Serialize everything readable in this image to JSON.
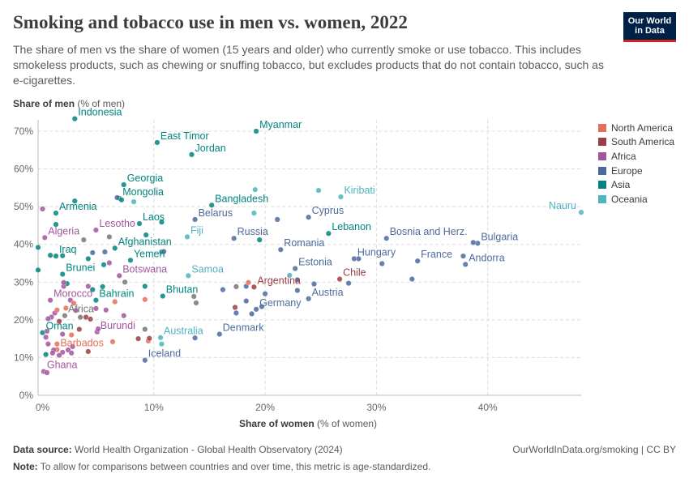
{
  "header": {
    "title": "Smoking and tobacco use in men vs. women, 2022",
    "subtitle": "The share of men vs the share of women (15 years and older) who currently smoke or use tobacco. This includes smokeless products, such as chewing or snuffing tobacco, but excludes products that do not contain tobacco, such as e-cigarettes.",
    "logo_text": "Our World in Data"
  },
  "footer": {
    "source_label": "Data source:",
    "source": "World Health Organization - Global Health Observatory (2024)",
    "link": "OurWorldInData.org/smoking | CC BY",
    "note_label": "Note:",
    "note": "To allow for comparisons between countries and over time, this metric is age-standardized."
  },
  "chart_data": {
    "type": "scatter",
    "title": "Smoking and tobacco use in men vs. women, 2022",
    "xlabel_bold": "Share of women",
    "xlabel_unit": "(% of women)",
    "ylabel_bold": "Share of men",
    "ylabel_unit": "(% of men)",
    "xlim": [
      -0.4,
      48.4
    ],
    "ylim": [
      0,
      73
    ],
    "xticks": [
      {
        "v": 0,
        "label": "0%"
      },
      {
        "v": 10,
        "label": "10%"
      },
      {
        "v": 20,
        "label": "20%"
      },
      {
        "v": 30,
        "label": "30%"
      },
      {
        "v": 40,
        "label": "40%"
      }
    ],
    "yticks": [
      {
        "v": 0,
        "label": "0%"
      },
      {
        "v": 10,
        "label": "10%"
      },
      {
        "v": 20,
        "label": "20%"
      },
      {
        "v": 30,
        "label": "30%"
      },
      {
        "v": 40,
        "label": "40%"
      },
      {
        "v": 50,
        "label": "50%"
      },
      {
        "v": 60,
        "label": "60%"
      },
      {
        "v": 70,
        "label": "70%"
      }
    ],
    "grid": true,
    "legend_position": "right",
    "legend": [
      {
        "name": "North America",
        "color": "#e56e5a"
      },
      {
        "name": "South America",
        "color": "#9a3e47"
      },
      {
        "name": "Africa",
        "color": "#a2559c"
      },
      {
        "name": "Europe",
        "color": "#4c6a9c"
      },
      {
        "name": "Asia",
        "color": "#00847e"
      },
      {
        "name": "Oceania",
        "color": "#4fb3c0"
      }
    ],
    "aggregate_color": "#777777",
    "points": [
      {
        "name": "Indonesia",
        "region": "Asia",
        "x": 2.9,
        "y": 73.3
      },
      {
        "name": "East Timor",
        "region": "Asia",
        "x": 10.3,
        "y": 67.0
      },
      {
        "name": "Myanmar",
        "region": "Asia",
        "x": 19.2,
        "y": 70.0
      },
      {
        "name": "Jordan",
        "region": "Asia",
        "x": 13.4,
        "y": 63.8
      },
      {
        "name": "Georgia",
        "region": "Asia",
        "x": 7.3,
        "y": 55.8
      },
      {
        "name": "Mongolia",
        "region": "Asia",
        "x": 6.9,
        "y": 52.2
      },
      {
        "name": "Armenia",
        "region": "Asia",
        "x": 1.2,
        "y": 48.3
      },
      {
        "name": "Bangladesh",
        "region": "Asia",
        "x": 15.2,
        "y": 50.4
      },
      {
        "name": "Laos",
        "region": "Asia",
        "x": 8.7,
        "y": 45.5
      },
      {
        "name": "Afghanistan",
        "region": "Asia",
        "x": 6.5,
        "y": 39.0
      },
      {
        "name": "Iraq",
        "region": "Asia",
        "x": 1.2,
        "y": 36.9
      },
      {
        "name": "Yemen",
        "region": "Asia",
        "x": 7.9,
        "y": 35.8
      },
      {
        "name": "Brunei",
        "region": "Asia",
        "x": 1.8,
        "y": 32.1
      },
      {
        "name": "Bahrain",
        "region": "Asia",
        "x": 4.8,
        "y": 25.2
      },
      {
        "name": "Oman",
        "region": "Asia",
        "x": 0.0,
        "y": 16.6
      },
      {
        "name": "Bhutan",
        "region": "Asia",
        "x": 10.8,
        "y": 26.3
      },
      {
        "name": "Lebanon",
        "region": "Asia",
        "x": 25.7,
        "y": 42.9
      },
      {
        "name": "Algeria",
        "region": "Africa",
        "x": 0.2,
        "y": 41.8
      },
      {
        "name": "Lesotho",
        "region": "Africa",
        "x": 4.8,
        "y": 43.8
      },
      {
        "name": "Botswana",
        "region": "Africa",
        "x": 6.9,
        "y": 31.7
      },
      {
        "name": "Morocco",
        "region": "Africa",
        "x": 0.7,
        "y": 25.2
      },
      {
        "name": "Burundi",
        "region": "Africa",
        "x": 4.9,
        "y": 16.8
      },
      {
        "name": "Ghana",
        "region": "Africa",
        "x": 0.1,
        "y": 6.3
      },
      {
        "name": "Africa",
        "region": "aggregate",
        "x": 2.0,
        "y": 21.1
      },
      {
        "name": "Barbados",
        "region": "North America",
        "x": 1.3,
        "y": 12.1
      },
      {
        "name": "Samoa",
        "region": "Oceania",
        "x": 13.1,
        "y": 31.7
      },
      {
        "name": "Fiji",
        "region": "Oceania",
        "x": 13.0,
        "y": 42.0
      },
      {
        "name": "Australia",
        "region": "Oceania",
        "x": 10.6,
        "y": 15.3
      },
      {
        "name": "Kiribati",
        "region": "Oceania",
        "x": 26.8,
        "y": 52.6
      },
      {
        "name": "Nauru",
        "region": "Oceania",
        "x": 48.4,
        "y": 48.5
      },
      {
        "name": "Iceland",
        "region": "Europe",
        "x": 9.2,
        "y": 9.3
      },
      {
        "name": "Denmark",
        "region": "Europe",
        "x": 15.9,
        "y": 16.2
      },
      {
        "name": "Germany",
        "region": "Europe",
        "x": 19.2,
        "y": 22.8
      },
      {
        "name": "Austria",
        "region": "Europe",
        "x": 23.9,
        "y": 25.6
      },
      {
        "name": "Estonia",
        "region": "Europe",
        "x": 22.7,
        "y": 33.6
      },
      {
        "name": "Romania",
        "region": "Europe",
        "x": 21.4,
        "y": 38.6
      },
      {
        "name": "Russia",
        "region": "Europe",
        "x": 17.2,
        "y": 41.6
      },
      {
        "name": "Cyprus",
        "region": "Europe",
        "x": 23.9,
        "y": 47.2
      },
      {
        "name": "Belarus",
        "region": "Europe",
        "x": 13.7,
        "y": 46.6
      },
      {
        "name": "Bosnia and Herz.",
        "region": "Europe",
        "x": 30.9,
        "y": 41.6
      },
      {
        "name": "Hungary",
        "region": "Europe",
        "x": 28.0,
        "y": 36.2
      },
      {
        "name": "France",
        "region": "Europe",
        "x": 33.7,
        "y": 35.6
      },
      {
        "name": "Andorra",
        "region": "Europe",
        "x": 38.0,
        "y": 34.7
      },
      {
        "name": "Bulgaria",
        "region": "Europe",
        "x": 39.1,
        "y": 40.3
      },
      {
        "name": "Argentina",
        "region": "South America",
        "x": 19.0,
        "y": 28.7
      },
      {
        "name": "Chile",
        "region": "South America",
        "x": 26.7,
        "y": 30.8
      },
      {
        "region": "Asia",
        "x": -0.4,
        "y": 33.2
      },
      {
        "region": "Asia",
        "x": -0.4,
        "y": 39.2
      },
      {
        "region": "Asia",
        "x": 2.9,
        "y": 51.5
      },
      {
        "region": "Asia",
        "x": 1.2,
        "y": 45.3
      },
      {
        "region": "Asia",
        "x": 0.7,
        "y": 37.1
      },
      {
        "region": "Asia",
        "x": 1.8,
        "y": 37.0
      },
      {
        "region": "Asia",
        "x": 4.1,
        "y": 36.2
      },
      {
        "region": "Asia",
        "x": 9.3,
        "y": 42.5
      },
      {
        "region": "Asia",
        "x": 10.7,
        "y": 45.9
      },
      {
        "region": "Asia",
        "x": 9.2,
        "y": 28.9
      },
      {
        "region": "Asia",
        "x": 19.5,
        "y": 41.2
      },
      {
        "region": "Asia",
        "x": 7.1,
        "y": 51.8
      },
      {
        "region": "Asia",
        "x": 4.5,
        "y": 28.0
      },
      {
        "region": "Asia",
        "x": 5.4,
        "y": 28.8
      },
      {
        "region": "Asia",
        "x": 0.3,
        "y": 10.8
      },
      {
        "region": "Asia",
        "x": 2.2,
        "y": 29.6
      },
      {
        "region": "Asia",
        "x": 10.7,
        "y": 38.0
      },
      {
        "region": "Asia",
        "x": 5.5,
        "y": 34.6
      },
      {
        "region": "Europe",
        "x": 6.7,
        "y": 52.4
      },
      {
        "region": "Europe",
        "x": 10.9,
        "y": 38.1
      },
      {
        "region": "Europe",
        "x": 5.6,
        "y": 38.0
      },
      {
        "region": "Europe",
        "x": 16.2,
        "y": 28.0
      },
      {
        "region": "Europe",
        "x": 21.1,
        "y": 46.6
      },
      {
        "region": "Europe",
        "x": 18.3,
        "y": 28.9
      },
      {
        "region": "Europe",
        "x": 18.3,
        "y": 25.0
      },
      {
        "region": "Europe",
        "x": 20.0,
        "y": 26.9
      },
      {
        "region": "Europe",
        "x": 18.8,
        "y": 21.6
      },
      {
        "region": "Europe",
        "x": 17.4,
        "y": 21.8
      },
      {
        "region": "Europe",
        "x": 22.9,
        "y": 30.6
      },
      {
        "region": "Europe",
        "x": 22.9,
        "y": 27.8
      },
      {
        "region": "Europe",
        "x": 24.4,
        "y": 29.5
      },
      {
        "region": "Europe",
        "x": 27.5,
        "y": 29.7
      },
      {
        "region": "Europe",
        "x": 28.4,
        "y": 36.2
      },
      {
        "region": "Europe",
        "x": 30.5,
        "y": 34.9
      },
      {
        "region": "Europe",
        "x": 33.2,
        "y": 30.8
      },
      {
        "region": "Europe",
        "x": 37.8,
        "y": 36.9
      },
      {
        "region": "Europe",
        "x": 38.7,
        "y": 40.5
      },
      {
        "region": "Europe",
        "x": 13.7,
        "y": 15.2
      },
      {
        "region": "Europe",
        "x": 4.5,
        "y": 37.8
      },
      {
        "region": "Europe",
        "x": 19.7,
        "y": 23.5
      },
      {
        "region": "aggregate",
        "x": 3.7,
        "y": 41.2
      },
      {
        "region": "aggregate",
        "x": 6.0,
        "y": 42.0
      },
      {
        "region": "aggregate",
        "x": 13.6,
        "y": 26.2
      },
      {
        "region": "aggregate",
        "x": 13.8,
        "y": 24.5
      },
      {
        "region": "aggregate",
        "x": 9.2,
        "y": 17.5
      },
      {
        "region": "aggregate",
        "x": 17.4,
        "y": 28.8
      },
      {
        "region": "aggregate",
        "x": 3.4,
        "y": 20.7
      },
      {
        "region": "aggregate",
        "x": 7.4,
        "y": 30.0
      },
      {
        "region": "Oceania",
        "x": 19.1,
        "y": 54.5
      },
      {
        "region": "Oceania",
        "x": 19.0,
        "y": 48.3
      },
      {
        "region": "Oceania",
        "x": 24.8,
        "y": 54.3
      },
      {
        "region": "Oceania",
        "x": 8.2,
        "y": 51.3
      },
      {
        "region": "Oceania",
        "x": 10.7,
        "y": 13.6
      },
      {
        "region": "Oceania",
        "x": 22.2,
        "y": 31.8
      },
      {
        "region": "Africa",
        "x": 0.0,
        "y": 49.4
      },
      {
        "region": "Africa",
        "x": 1.9,
        "y": 28.9
      },
      {
        "region": "Africa",
        "x": 1.9,
        "y": 29.9
      },
      {
        "region": "Africa",
        "x": 6.0,
        "y": 35.1
      },
      {
        "region": "Africa",
        "x": 4.1,
        "y": 28.9
      },
      {
        "region": "Africa",
        "x": 1.1,
        "y": 21.8
      },
      {
        "region": "Africa",
        "x": 0.8,
        "y": 20.7
      },
      {
        "region": "Africa",
        "x": 4.8,
        "y": 23.0
      },
      {
        "region": "Africa",
        "x": 5.7,
        "y": 22.6
      },
      {
        "region": "Africa",
        "x": 7.3,
        "y": 21.1
      },
      {
        "region": "Africa",
        "x": 5.0,
        "y": 17.6
      },
      {
        "region": "Africa",
        "x": 0.3,
        "y": 15.4
      },
      {
        "region": "Africa",
        "x": 0.4,
        "y": 17.0
      },
      {
        "region": "Africa",
        "x": 1.0,
        "y": 12.0
      },
      {
        "region": "Africa",
        "x": 0.9,
        "y": 11.2
      },
      {
        "region": "Africa",
        "x": 1.8,
        "y": 11.4
      },
      {
        "region": "Africa",
        "x": 2.3,
        "y": 12.0
      },
      {
        "region": "Africa",
        "x": 2.7,
        "y": 12.9
      },
      {
        "region": "Africa",
        "x": 0.5,
        "y": 20.3
      },
      {
        "region": "Africa",
        "x": 0.5,
        "y": 13.6
      },
      {
        "region": "Africa",
        "x": 2.6,
        "y": 11.2
      },
      {
        "region": "Africa",
        "x": 1.5,
        "y": 10.6
      },
      {
        "region": "Africa",
        "x": 0.4,
        "y": 6.0
      },
      {
        "region": "Africa",
        "x": 1.8,
        "y": 16.2
      },
      {
        "region": "Africa",
        "x": 3.0,
        "y": 22.5
      },
      {
        "region": "Africa",
        "x": 2.5,
        "y": 25.2
      },
      {
        "region": "North America",
        "x": 6.5,
        "y": 24.8
      },
      {
        "region": "North America",
        "x": 9.2,
        "y": 25.4
      },
      {
        "region": "North America",
        "x": 2.1,
        "y": 23.1
      },
      {
        "region": "North America",
        "x": 1.3,
        "y": 22.6
      },
      {
        "region": "North America",
        "x": 6.3,
        "y": 14.2
      },
      {
        "region": "North America",
        "x": 9.5,
        "y": 14.4
      },
      {
        "region": "North America",
        "x": 1.3,
        "y": 13.6
      },
      {
        "region": "North America",
        "x": 18.5,
        "y": 29.9
      },
      {
        "region": "North America",
        "x": 2.6,
        "y": 16.0
      },
      {
        "region": "North America",
        "x": 2.8,
        "y": 24.4
      },
      {
        "region": "South America",
        "x": 3.9,
        "y": 20.7
      },
      {
        "region": "South America",
        "x": 4.3,
        "y": 20.2
      },
      {
        "region": "South America",
        "x": 3.3,
        "y": 17.5
      },
      {
        "region": "South America",
        "x": 9.6,
        "y": 15.1
      },
      {
        "region": "South America",
        "x": 4.1,
        "y": 11.6
      },
      {
        "region": "South America",
        "x": 17.3,
        "y": 23.3
      },
      {
        "region": "South America",
        "x": 1.5,
        "y": 19.6
      },
      {
        "region": "South America",
        "x": 8.6,
        "y": 15.0
      }
    ]
  }
}
